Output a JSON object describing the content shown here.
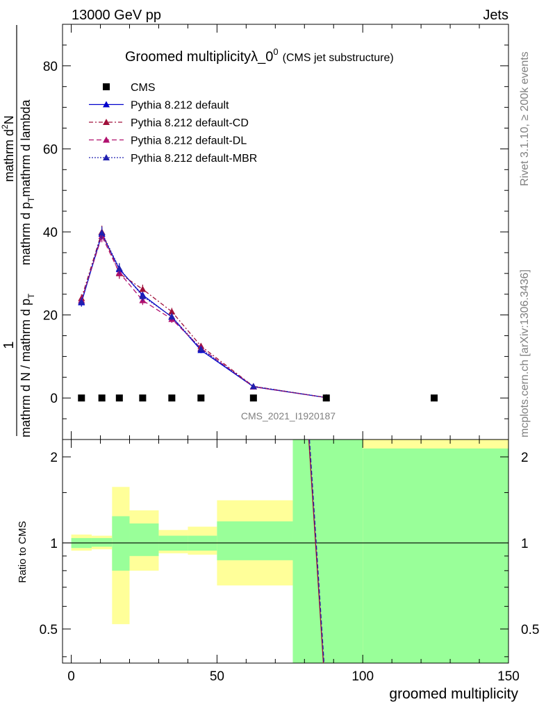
{
  "header": {
    "left": "13000 GeV pp",
    "right": "Jets"
  },
  "side_labels": {
    "rivet": "Rivet 3.1.10, ≥ 200k events",
    "mcplots": "mcplots.cern.ch [arXiv:1306.3436]"
  },
  "chart_data": {
    "type": "line",
    "title": "Groomed multiplicityλ_0",
    "title_sup": "0",
    "subtitle": "(CMS jet substructure)",
    "watermark": "CMS_2021_I1920187",
    "ylabel": {
      "frac_one": "1",
      "denominator": "mathrm d N / mathrm d p",
      "numerator": "mathrm d",
      "numerator_sup": "2",
      "numerator_tail": "N",
      "rest": "mathrm d p",
      "rest_sub": "T",
      "rest_tail": " mathrm d lambda"
    },
    "ylabel_parts": [
      "1",
      "mathrm d N / mathrm d p",
      "T",
      "mathrm d",
      "2",
      "N",
      "mathrm d p",
      "T",
      "mathrm d lambda"
    ],
    "xlabel": "groomed multiplicity",
    "ratio_ylabel": "Ratio to CMS",
    "xlim": [
      -3,
      150
    ],
    "ylim": [
      -10,
      90
    ],
    "ratio_ylim": [
      0.38,
      2.3
    ],
    "x_ticks": [
      "0",
      "50",
      "100",
      "150"
    ],
    "x_tick_values": [
      0,
      50,
      100,
      150
    ],
    "y_ticks": [
      "0",
      "20",
      "40",
      "60",
      "80"
    ],
    "y_tick_values": [
      0,
      20,
      40,
      60,
      80
    ],
    "ratio_ticks": [
      "0.5",
      "1",
      "2"
    ],
    "ratio_tick_values": [
      0.5,
      1,
      2
    ],
    "legend": [
      {
        "name": "CMS",
        "style": "data",
        "color": "#000000"
      },
      {
        "name": "Pythia 8.212 default",
        "style": "solid",
        "color": "#0000cc"
      },
      {
        "name": "Pythia 8.212 default-CD",
        "style": "dashdot",
        "color": "#a0103a"
      },
      {
        "name": "Pythia 8.212 default-DL",
        "style": "dashed",
        "color": "#b0106e"
      },
      {
        "name": "Pythia 8.212 default-MBR",
        "style": "dotted",
        "color": "#2020b0"
      }
    ],
    "cms": {
      "x": [
        3.5,
        10.5,
        16.5,
        24.5,
        34.5,
        44.5,
        62.5,
        87.5,
        124.5
      ],
      "y": [
        0,
        0,
        0,
        0,
        0,
        0,
        0,
        0,
        0
      ]
    },
    "series": [
      {
        "name": "Pythia 8.212 default",
        "x": [
          3.5,
          10.5,
          16.5,
          24.5,
          34.5,
          44.5,
          62.5,
          87.5
        ],
        "y": [
          23.0,
          39.5,
          31.0,
          24.8,
          19.5,
          11.5,
          2.7,
          0.1
        ],
        "err": [
          1.0,
          1.5,
          1.3,
          1.1,
          0.9,
          0.7,
          0.3,
          0.05
        ]
      },
      {
        "name": "Pythia 8.212 default-CD",
        "x": [
          3.5,
          10.5,
          16.5,
          24.5,
          34.5,
          44.5,
          62.5,
          87.5
        ],
        "y": [
          24.0,
          40.0,
          30.0,
          26.2,
          20.8,
          12.5,
          2.8,
          0.1
        ],
        "err": [
          1.0,
          1.5,
          1.3,
          1.1,
          0.9,
          0.7,
          0.3,
          0.05
        ]
      },
      {
        "name": "Pythia 8.212 default-DL",
        "x": [
          3.5,
          10.5,
          16.5,
          24.5,
          34.5,
          44.5,
          62.5,
          87.5
        ],
        "y": [
          23.5,
          39.0,
          30.2,
          23.5,
          19.0,
          12.0,
          2.7,
          0.1
        ],
        "err": [
          1.0,
          1.5,
          1.3,
          1.1,
          0.9,
          0.7,
          0.3,
          0.05
        ]
      },
      {
        "name": "Pythia 8.212 default-MBR",
        "x": [
          3.5,
          10.5,
          16.5,
          24.5,
          34.5,
          44.5,
          62.5,
          87.5
        ],
        "y": [
          23.2,
          39.8,
          31.2,
          24.5,
          19.6,
          11.8,
          2.8,
          0.1
        ],
        "err": [
          1.0,
          1.5,
          1.3,
          1.1,
          0.9,
          0.7,
          0.3,
          0.05
        ]
      }
    ],
    "ratio_bands": [
      {
        "x0": 0,
        "x1": 7,
        "yellow": [
          0.94,
          1.07
        ],
        "green": [
          0.96,
          1.04
        ]
      },
      {
        "x0": 7,
        "x1": 14,
        "yellow": [
          0.95,
          1.06
        ],
        "green": [
          0.97,
          1.04
        ]
      },
      {
        "x0": 14,
        "x1": 20,
        "yellow": [
          0.52,
          1.57
        ],
        "green": [
          0.8,
          1.24
        ]
      },
      {
        "x0": 20,
        "x1": 30,
        "yellow": [
          0.8,
          1.3
        ],
        "green": [
          0.9,
          1.17
        ]
      },
      {
        "x0": 30,
        "x1": 40,
        "yellow": [
          0.92,
          1.11
        ],
        "green": [
          0.94,
          1.06
        ]
      },
      {
        "x0": 40,
        "x1": 50,
        "yellow": [
          0.91,
          1.14
        ],
        "green": [
          0.94,
          1.06
        ]
      },
      {
        "x0": 50,
        "x1": 76,
        "yellow": [
          0.71,
          1.41
        ],
        "green": [
          0.87,
          1.19
        ]
      },
      {
        "x0": 76,
        "x1": 100,
        "yellow": [
          0.38,
          2.3
        ],
        "green": [
          0.38,
          2.3
        ]
      },
      {
        "x0": 100,
        "x1": 150,
        "yellow": [
          0.38,
          2.3
        ],
        "green": [
          0.38,
          2.14
        ]
      }
    ],
    "ratio_line": {
      "x": [
        81.5,
        86.5
      ],
      "y": [
        2.3,
        0.38
      ]
    }
  }
}
